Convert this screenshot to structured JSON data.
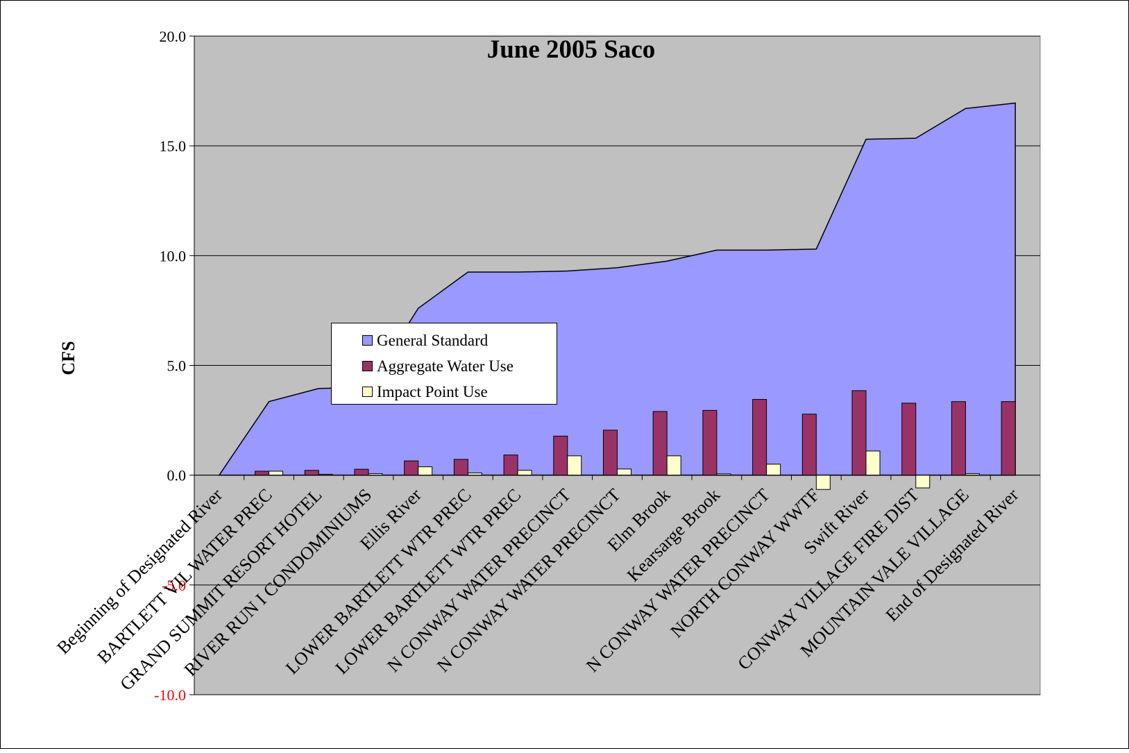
{
  "chart_data": {
    "type": "bar",
    "title": "June 2005 Saco",
    "ylabel": "CFS",
    "xlabel": "",
    "ylim": [
      -10,
      20
    ],
    "yticks": [
      "-10.0",
      "-5.0",
      "0.0",
      "5.0",
      "10.0",
      "15.0",
      "20.0"
    ],
    "grid": true,
    "legend_position": "center-left",
    "categories": [
      "Beginning of Designated River",
      "BARTLETT VIL WATER PREC",
      "GRAND SUMMIT RESORT HOTEL",
      "RIVER RUN I CONDOMINIUMS",
      "Ellis River",
      "LOWER BARTLETT WTR PREC",
      "LOWER BARTLETT WTR PREC",
      "N CONWAY WATER PRECINCT",
      "N CONWAY WATER PRECINCT",
      "Elm Brook",
      "Kearsarge Brook",
      "N CONWAY WATER PRECINCT",
      "NORTH CONWAY WWTF",
      "Swift River",
      "CONWAY VILLAGE FIRE DIST",
      "MOUNTAIN VALE VILLAGE",
      "End of Designated River"
    ],
    "series": [
      {
        "name": "General Standard",
        "kind": "area",
        "color": "#9999ff",
        "values": [
          0.0,
          3.35,
          3.95,
          4.0,
          7.6,
          9.25,
          9.25,
          9.3,
          9.45,
          9.75,
          10.25,
          10.25,
          10.3,
          15.3,
          15.35,
          16.7,
          16.95
        ]
      },
      {
        "name": "Aggregate Water Use",
        "kind": "bar",
        "color": "#993366",
        "values": [
          0.0,
          0.18,
          0.22,
          0.27,
          0.65,
          0.72,
          0.92,
          1.78,
          2.05,
          2.9,
          2.95,
          3.45,
          2.78,
          3.85,
          3.28,
          3.35,
          3.35
        ]
      },
      {
        "name": "Impact Point Use",
        "kind": "bar",
        "color": "#ffffcc",
        "values": [
          0.0,
          0.18,
          0.04,
          0.07,
          0.38,
          0.1,
          0.22,
          0.88,
          0.28,
          0.88,
          0.06,
          0.5,
          -0.65,
          1.1,
          -0.58,
          0.07,
          0.0
        ]
      }
    ],
    "colors": {
      "plot_background": "#c0c0c0",
      "negative_tick_labels": "#ff0000"
    }
  }
}
